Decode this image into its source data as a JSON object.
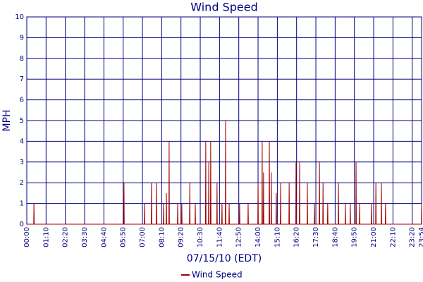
{
  "chart_data": {
    "type": "line",
    "title": "Wind Speed",
    "x_label": "07/15/10 (EDT)",
    "y_label": "MPH",
    "x": [
      "00:00",
      "00:25",
      "00:26",
      "00:27",
      "05:52",
      "05:53",
      "05:54",
      "07:07",
      "07:08",
      "07:09",
      "07:32",
      "07:33",
      "07:34",
      "07:50",
      "07:51",
      "07:52",
      "08:16",
      "08:17",
      "08:18",
      "08:26",
      "08:27",
      "08:28",
      "08:36",
      "08:37",
      "08:38",
      "09:07",
      "09:08",
      "09:09",
      "09:22",
      "09:23",
      "09:24",
      "09:51",
      "09:52",
      "09:53",
      "10:11",
      "10:12",
      "10:13",
      "10:49",
      "10:50",
      "10:51",
      "11:00",
      "11:01",
      "11:02",
      "11:07",
      "11:08",
      "11:09",
      "11:30",
      "11:31",
      "11:32",
      "11:48",
      "11:49",
      "11:50",
      "12:01",
      "12:02",
      "12:03",
      "12:14",
      "12:15",
      "12:16",
      "12:52",
      "12:53",
      "12:54",
      "13:23",
      "13:24",
      "13:25",
      "13:59",
      "14:00",
      "14:01",
      "14:14",
      "14:15",
      "14:16",
      "14:19",
      "14:20",
      "14:21",
      "14:40",
      "14:41",
      "14:42",
      "14:47",
      "14:48",
      "14:49",
      "15:05",
      "15:06",
      "15:07",
      "15:21",
      "15:22",
      "15:23",
      "15:52",
      "15:53",
      "15:54",
      "16:17",
      "16:18",
      "16:19",
      "16:30",
      "16:31",
      "16:32",
      "16:58",
      "16:59",
      "17:00",
      "17:24",
      "17:25",
      "17:26",
      "17:42",
      "17:43",
      "17:44",
      "17:55",
      "17:56",
      "17:57",
      "18:12",
      "18:13",
      "18:14",
      "18:51",
      "18:52",
      "18:53",
      "19:16",
      "19:17",
      "19:18",
      "19:34",
      "19:35",
      "19:36",
      "19:55",
      "19:56",
      "19:57",
      "20:08",
      "20:09",
      "20:10",
      "20:51",
      "20:52",
      "20:53",
      "21:07",
      "21:08",
      "21:09",
      "21:27",
      "21:28",
      "21:29",
      "21:42",
      "21:43",
      "21:44",
      "23:53",
      "23:54"
    ],
    "series": [
      {
        "name": "Wind Speed",
        "color": "#a00000",
        "values": [
          0,
          0,
          1,
          0,
          0,
          2,
          0,
          0,
          1,
          0,
          0,
          2,
          0,
          0,
          2,
          0,
          0,
          1,
          0,
          0,
          1.5,
          0,
          0,
          4,
          0,
          0,
          1,
          0,
          0,
          1,
          0,
          0,
          2,
          0,
          0,
          1,
          0,
          0,
          4,
          0,
          0,
          3,
          0,
          0,
          4,
          0,
          0,
          2,
          0,
          0,
          1,
          0,
          0,
          5,
          0,
          0,
          1,
          0,
          0,
          1,
          0,
          0,
          1,
          0,
          0,
          2,
          0,
          0,
          4,
          0,
          0,
          2.5,
          0,
          0,
          4,
          0,
          0,
          2.5,
          0,
          0,
          1.5,
          0,
          0,
          2,
          0,
          0,
          2,
          0,
          0,
          3,
          0,
          0,
          3,
          0,
          0,
          2,
          0,
          0,
          1,
          0,
          0,
          3,
          0,
          0,
          2,
          0,
          0,
          1,
          0,
          0,
          2,
          0,
          0,
          1,
          0,
          0,
          1,
          0,
          0,
          3,
          0,
          0,
          1,
          0,
          0,
          1,
          0,
          0,
          2,
          0,
          0,
          2,
          0,
          0,
          1,
          0,
          0,
          1
        ]
      }
    ],
    "xlim": [
      "00:00",
      "23:54"
    ],
    "xticks": [
      "00:00",
      "01:10",
      "02:20",
      "03:30",
      "04:40",
      "05:50",
      "07:00",
      "08:10",
      "09:20",
      "10:30",
      "11:40",
      "12:50",
      "14:00",
      "15:10",
      "16:20",
      "17:30",
      "18:40",
      "19:50",
      "21:00",
      "22:10",
      "23:20",
      "23:54"
    ],
    "ylim": [
      0,
      10
    ],
    "yticks": [
      0,
      1,
      2,
      3,
      4,
      5,
      6,
      7,
      8,
      9,
      10
    ],
    "grid": true
  }
}
